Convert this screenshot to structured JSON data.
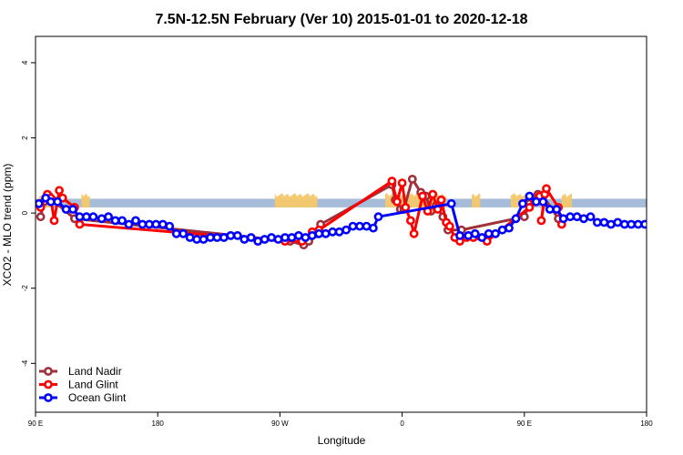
{
  "chart_data": {
    "type": "line",
    "title": "7.5N-12.5N February (Ver 10)   2015-01-01 to 2020-12-18",
    "xlabel": "Longitude",
    "ylabel": "XCO2 - MLO trend (ppm)",
    "xlim": [
      90,
      450
    ],
    "ylim": [
      -5.3,
      4.7
    ],
    "x_ticks": [
      {
        "value": 90,
        "label": "90 E"
      },
      {
        "value": 162,
        "label": "180"
      },
      {
        "value": 234,
        "label": "90 W"
      },
      {
        "value": 306,
        "label": "0"
      },
      {
        "value": 378,
        "label": "90 E"
      },
      {
        "value": 450,
        "label": "180"
      }
    ],
    "y_ticks": [
      {
        "value": -4,
        "label": "-4"
      },
      {
        "value": -2,
        "label": "-2"
      },
      {
        "value": 0,
        "label": "0"
      },
      {
        "value": 2,
        "label": "2"
      },
      {
        "value": 4,
        "label": "4"
      }
    ],
    "legend_position": "bottom-left",
    "band": {
      "y_min": 0.15,
      "y_max": 0.38,
      "color": "#a6bcd8"
    },
    "land_color": "#f4c76a",
    "land_segments": [
      [
        92,
        100
      ],
      [
        117,
        122
      ],
      [
        231,
        256
      ],
      [
        296,
        332
      ],
      [
        347,
        352
      ],
      [
        370,
        380
      ],
      [
        400,
        406
      ]
    ],
    "series": [
      {
        "name": "Land Nadir",
        "color": "#a0303a",
        "points": [
          [
            93,
            -0.1
          ],
          [
            95,
            0.3
          ],
          [
            98,
            0.45
          ],
          [
            100,
            0.35
          ],
          [
            113,
            -0.15
          ],
          [
            240,
            -0.75
          ],
          [
            248,
            -0.85
          ],
          [
            251,
            -0.75
          ],
          [
            256,
            -0.55
          ],
          [
            258,
            -0.3
          ],
          [
            300,
            0.75
          ],
          [
            302,
            0.35
          ],
          [
            305,
            0.1
          ],
          [
            307,
            0.1
          ],
          [
            312,
            0.9
          ],
          [
            317,
            0.55
          ],
          [
            320,
            0.45
          ],
          [
            323,
            0.05
          ],
          [
            326,
            0.2
          ],
          [
            330,
            -0.1
          ],
          [
            333,
            -0.45
          ],
          [
            341,
            -0.45
          ],
          [
            378,
            -0.1
          ],
          [
            381,
            0.25
          ],
          [
            386,
            0.5
          ],
          [
            389,
            0.45
          ],
          [
            398,
            -0.15
          ]
        ]
      },
      {
        "name": "Land Glint",
        "color": "#ff0000",
        "points": [
          [
            93,
            0.15
          ],
          [
            97,
            0.5
          ],
          [
            99,
            0.4
          ],
          [
            101,
            -0.2
          ],
          [
            104,
            0.6
          ],
          [
            106,
            0.4
          ],
          [
            113,
            0.15
          ],
          [
            116,
            -0.3
          ],
          [
            237,
            -0.75
          ],
          [
            247,
            -0.75
          ],
          [
            253,
            -0.5
          ],
          [
            257,
            -0.45
          ],
          [
            300,
            0.85
          ],
          [
            303,
            0.3
          ],
          [
            306,
            0.8
          ],
          [
            308,
            0.15
          ],
          [
            311,
            -0.2
          ],
          [
            313,
            -0.55
          ],
          [
            318,
            0.45
          ],
          [
            321,
            0.05
          ],
          [
            324,
            0.5
          ],
          [
            327,
            0.1
          ],
          [
            329,
            0.35
          ],
          [
            332,
            -0.25
          ],
          [
            334,
            -0.35
          ],
          [
            337,
            -0.65
          ],
          [
            340,
            -0.75
          ],
          [
            344,
            -0.65
          ],
          [
            348,
            -0.65
          ],
          [
            356,
            -0.75
          ],
          [
            381,
            0.15
          ],
          [
            384,
            0.3
          ],
          [
            387,
            0.45
          ],
          [
            390,
            0.5
          ],
          [
            388,
            -0.2
          ],
          [
            391,
            0.65
          ],
          [
            398,
            0.15
          ],
          [
            400,
            -0.3
          ]
        ]
      },
      {
        "name": "Ocean Glint",
        "color": "#0000ff",
        "points": [
          [
            92,
            0.25
          ],
          [
            96,
            0.4
          ],
          [
            99,
            0.3
          ],
          [
            103,
            0.3
          ],
          [
            108,
            0.1
          ],
          [
            112,
            0.1
          ],
          [
            116,
            -0.1
          ],
          [
            120,
            -0.1
          ],
          [
            124,
            -0.1
          ],
          [
            129,
            -0.15
          ],
          [
            133,
            -0.1
          ],
          [
            137,
            -0.2
          ],
          [
            141,
            -0.2
          ],
          [
            145,
            -0.3
          ],
          [
            149,
            -0.2
          ],
          [
            153,
            -0.3
          ],
          [
            157,
            -0.3
          ],
          [
            161,
            -0.3
          ],
          [
            165,
            -0.3
          ],
          [
            169,
            -0.35
          ],
          [
            173,
            -0.55
          ],
          [
            177,
            -0.55
          ],
          [
            181,
            -0.65
          ],
          [
            185,
            -0.7
          ],
          [
            189,
            -0.7
          ],
          [
            193,
            -0.65
          ],
          [
            197,
            -0.65
          ],
          [
            201,
            -0.65
          ],
          [
            205,
            -0.6
          ],
          [
            209,
            -0.6
          ],
          [
            213,
            -0.7
          ],
          [
            217,
            -0.65
          ],
          [
            221,
            -0.75
          ],
          [
            225,
            -0.7
          ],
          [
            229,
            -0.65
          ],
          [
            233,
            -0.7
          ],
          [
            237,
            -0.65
          ],
          [
            241,
            -0.65
          ],
          [
            245,
            -0.6
          ],
          [
            249,
            -0.65
          ],
          [
            253,
            -0.6
          ],
          [
            257,
            -0.55
          ],
          [
            261,
            -0.55
          ],
          [
            265,
            -0.5
          ],
          [
            269,
            -0.5
          ],
          [
            273,
            -0.45
          ],
          [
            277,
            -0.35
          ],
          [
            281,
            -0.35
          ],
          [
            285,
            -0.35
          ],
          [
            289,
            -0.4
          ],
          [
            292,
            -0.1
          ],
          [
            335,
            0.25
          ],
          [
            340,
            -0.6
          ],
          [
            345,
            -0.6
          ],
          [
            349,
            -0.55
          ],
          [
            353,
            -0.65
          ],
          [
            357,
            -0.55
          ],
          [
            361,
            -0.55
          ],
          [
            365,
            -0.45
          ],
          [
            369,
            -0.4
          ],
          [
            373,
            -0.15
          ],
          [
            377,
            0.25
          ],
          [
            381,
            0.45
          ],
          [
            385,
            0.3
          ],
          [
            389,
            0.3
          ],
          [
            393,
            0.1
          ],
          [
            397,
            0.1
          ],
          [
            401,
            -0.15
          ],
          [
            405,
            -0.1
          ],
          [
            409,
            -0.1
          ],
          [
            413,
            -0.15
          ],
          [
            417,
            -0.1
          ],
          [
            421,
            -0.25
          ],
          [
            425,
            -0.25
          ],
          [
            429,
            -0.3
          ],
          [
            433,
            -0.25
          ],
          [
            437,
            -0.3
          ],
          [
            441,
            -0.3
          ],
          [
            445,
            -0.3
          ],
          [
            449,
            -0.3
          ]
        ]
      }
    ]
  }
}
